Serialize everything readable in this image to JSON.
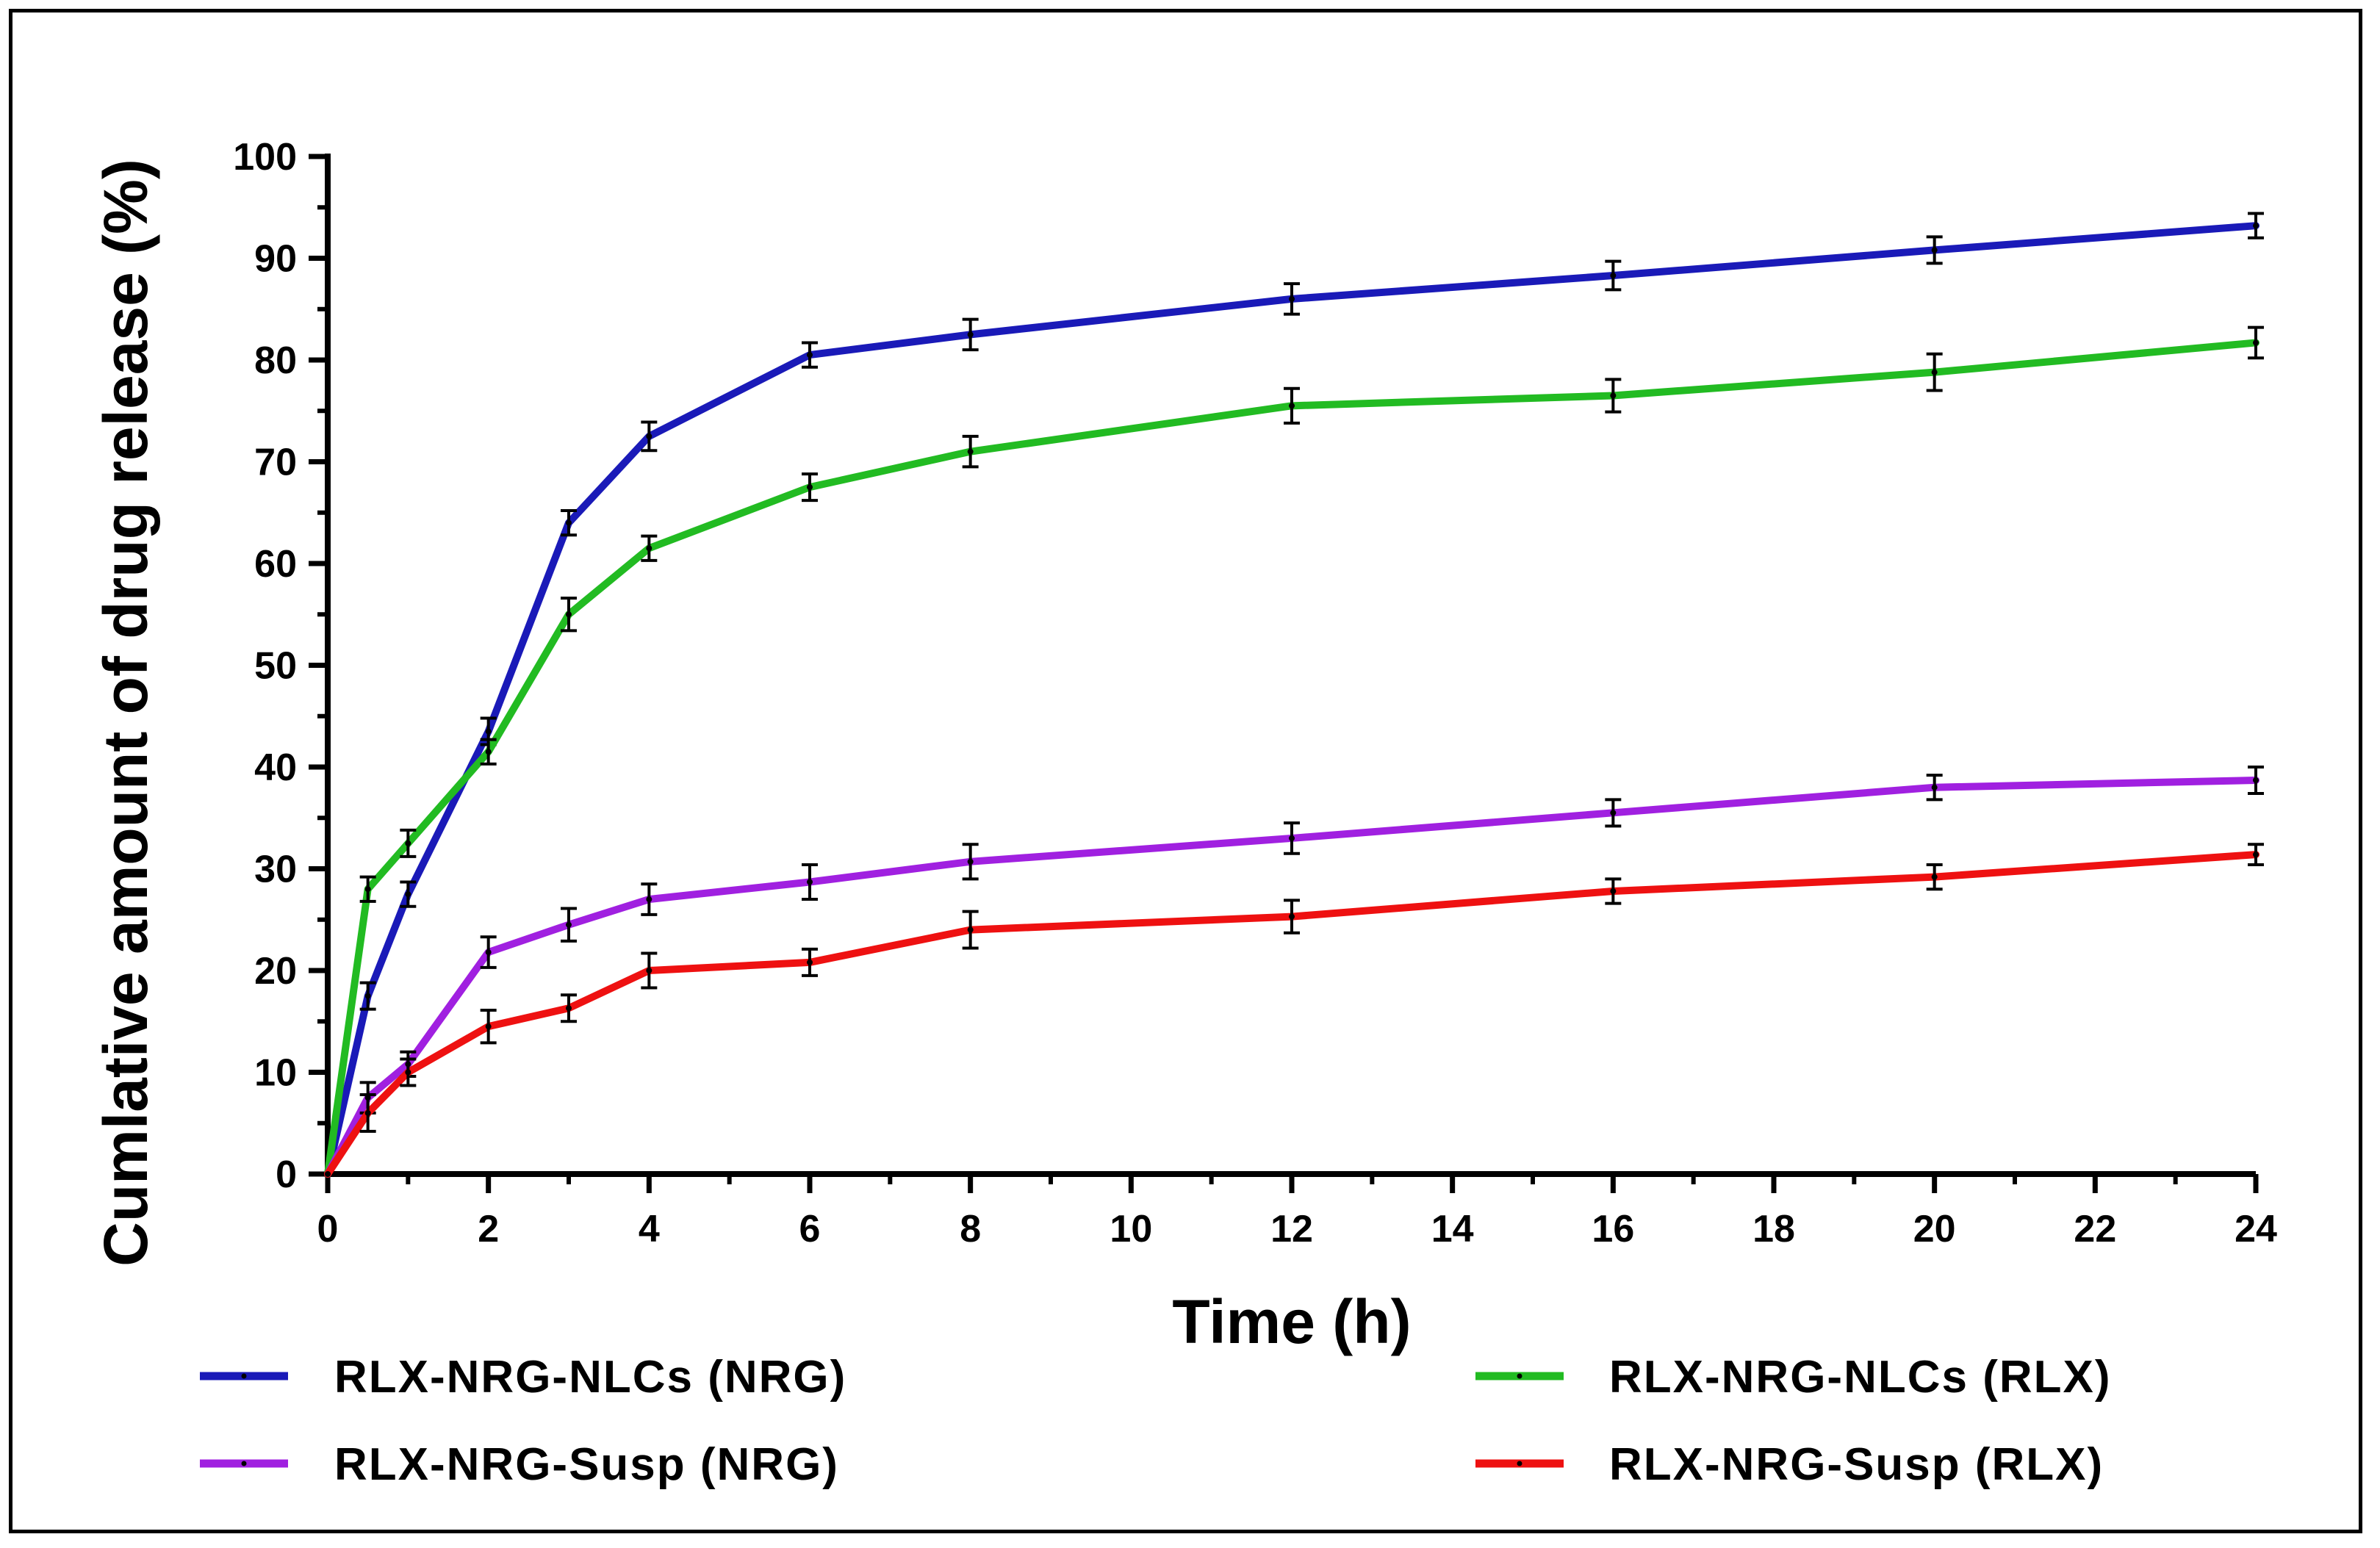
{
  "chart_data": {
    "type": "line",
    "title": "",
    "xlabel": "Time (h)",
    "ylabel": "Cumlative amount of drug release (%)",
    "xlim": [
      0,
      24
    ],
    "ylim": [
      0,
      100
    ],
    "xticks": [
      0,
      2,
      4,
      6,
      8,
      10,
      12,
      14,
      16,
      18,
      20,
      22,
      24
    ],
    "yticks": [
      0,
      10,
      20,
      30,
      40,
      50,
      60,
      70,
      80,
      90,
      100
    ],
    "grid": false,
    "legend_position": "bottom",
    "x": [
      0,
      0.5,
      1,
      2,
      3,
      4,
      6,
      8,
      12,
      16,
      20,
      24
    ],
    "series": [
      {
        "name": "RLX-NRG-NLCs (NRG)",
        "color": "#1a1ab8",
        "values": [
          0,
          17.5,
          27.5,
          43.5,
          64.0,
          72.5,
          80.5,
          82.5,
          86.0,
          88.3,
          90.8,
          93.2
        ],
        "errors": [
          0,
          1.3,
          1.2,
          1.3,
          1.2,
          1.4,
          1.2,
          1.5,
          1.5,
          1.4,
          1.3,
          1.2
        ]
      },
      {
        "name": "RLX-NRG-NLCs (RLX)",
        "color": "#22bb22",
        "values": [
          0,
          28.0,
          32.5,
          41.5,
          55.0,
          61.5,
          67.5,
          71.0,
          75.5,
          76.5,
          78.8,
          81.7
        ],
        "errors": [
          0,
          1.2,
          1.3,
          1.2,
          1.6,
          1.2,
          1.3,
          1.5,
          1.7,
          1.6,
          1.8,
          1.5
        ]
      },
      {
        "name": "RLX-NRG-Susp (NRG)",
        "color": "#a020e0",
        "values": [
          0,
          7.5,
          10.8,
          21.8,
          24.5,
          27.0,
          28.7,
          30.7,
          33.0,
          35.5,
          38.0,
          38.7
        ],
        "errors": [
          0,
          1.5,
          1.2,
          1.5,
          1.6,
          1.5,
          1.7,
          1.7,
          1.5,
          1.3,
          1.2,
          1.3
        ]
      },
      {
        "name": "RLX-NRG-Susp (RLX)",
        "color": "#ee1111",
        "values": [
          0,
          6.0,
          10.0,
          14.5,
          16.3,
          20.0,
          20.8,
          24.0,
          25.3,
          27.8,
          29.2,
          31.4
        ],
        "errors": [
          0,
          1.8,
          1.3,
          1.6,
          1.3,
          1.7,
          1.3,
          1.8,
          1.6,
          1.2,
          1.2,
          1.0
        ]
      }
    ]
  }
}
